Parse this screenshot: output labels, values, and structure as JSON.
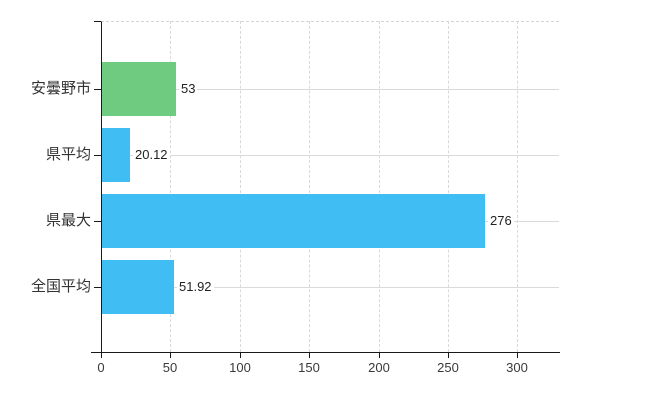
{
  "chart_data": {
    "type": "bar",
    "orientation": "horizontal",
    "title": "",
    "xlabel": "",
    "ylabel": "",
    "categories": [
      "安曇野市",
      "県平均",
      "県最大",
      "全国平均"
    ],
    "values": [
      53,
      20.12,
      276,
      51.92
    ],
    "value_labels": [
      "53",
      "20.12",
      "276",
      "51.92"
    ],
    "bar_colors": [
      "#6ecb7f",
      "#40bdf2",
      "#40bdf2",
      "#40bdf2"
    ],
    "x_ticks": [
      "0",
      "50",
      "100",
      "150",
      "200",
      "250",
      "300"
    ],
    "x_tick_values": [
      0,
      50,
      100,
      150,
      200,
      250,
      300
    ],
    "xlim": [
      0,
      330
    ],
    "grid": true,
    "legend": false
  },
  "colors": {
    "bar_green": "#6ecb7f",
    "bar_blue": "#40bdf2",
    "axis": "#1a1a1a",
    "gridline_vertical": "#d9d9d9",
    "gridline_horizontal": "#dadada",
    "plot_top_border": "#d4d4d4",
    "category_text": "#333333",
    "tick_text": "#3a3a3a",
    "value_text": "#222222",
    "background": "#ffffff"
  }
}
